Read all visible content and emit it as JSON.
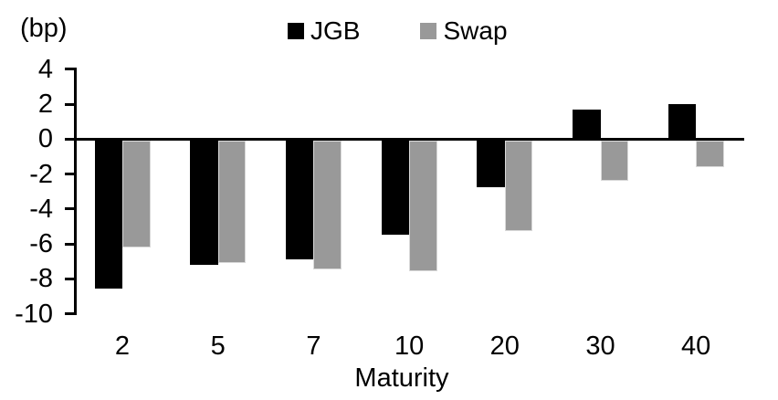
{
  "chart_data": {
    "type": "bar",
    "title": "",
    "unit_label": "(bp)",
    "xlabel": "Maturity",
    "ylabel": "(bp)",
    "categories": [
      "2",
      "5",
      "7",
      "10",
      "20",
      "30",
      "40"
    ],
    "series": [
      {
        "name": "JGB",
        "color": "#000000",
        "values": [
          -8.5,
          -7.1,
          -6.8,
          -5.4,
          -2.7,
          1.7,
          2.0
        ]
      },
      {
        "name": "Swap",
        "color": "#999999",
        "values": [
          -6.1,
          -7.0,
          -7.4,
          -7.5,
          -5.2,
          -2.3,
          -1.5
        ]
      }
    ],
    "yticks": [
      4,
      2,
      0,
      -2,
      -4,
      -6,
      -8,
      -10
    ],
    "ylim": [
      -10,
      4
    ],
    "ytick_step": 2,
    "legend_position": "top-center",
    "grid": false,
    "axis_color": "#000000",
    "background_color": "#ffffff"
  }
}
